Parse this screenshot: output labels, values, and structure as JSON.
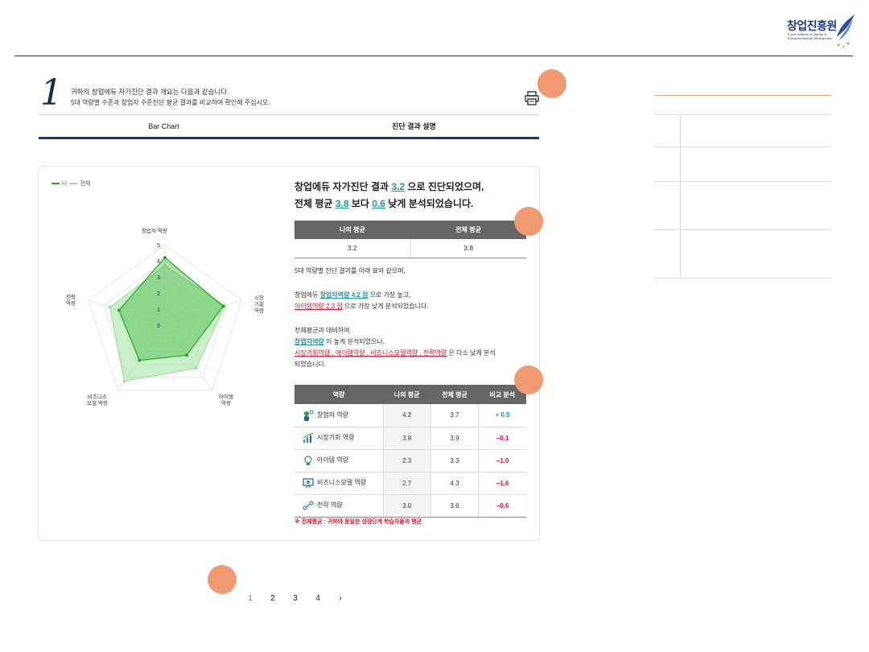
{
  "header": {
    "logo_text": "창업진흥원",
    "logo_sub": "Korea Institute of Startup & Entrepreneurship Development"
  },
  "intro": {
    "step_number": "1",
    "line1": "귀하의 창업에듀 자가진단 결과 개요는 다음과 같습니다.",
    "line2": "5대 역량별 수준과 창업자 수준진단 평균 결과를 비교하여 확인해 주십시오."
  },
  "tabs": [
    {
      "label": "Bar Chart"
    },
    {
      "label": "진단 결과 설명"
    }
  ],
  "chart_data": {
    "type": "radar",
    "legend": [
      {
        "name": "나",
        "color": "#22aa22"
      },
      {
        "name": "전체",
        "color": "#9de39a"
      }
    ],
    "axes": [
      "창업자 역량",
      "시장 기회 역량",
      "아이템 역량",
      "비즈니스 모델 역량",
      "전략 역량"
    ],
    "range": [
      0,
      5
    ],
    "ticks": [
      "0",
      "1",
      "2",
      "3",
      "4",
      "5"
    ],
    "series": [
      {
        "name": "나",
        "values": [
          4.2,
          3.8,
          2.3,
          2.7,
          3.0
        ]
      },
      {
        "name": "전체",
        "values": [
          3.7,
          3.9,
          3.3,
          4.3,
          3.6
        ]
      }
    ]
  },
  "axis_labels": {
    "a0": "창업자 역량",
    "a1a": "시장",
    "a1b": "기회",
    "a1c": "역량",
    "a2a": "아이템",
    "a2b": "역량",
    "a3a": "비즈니스",
    "a3b": "모델 역량",
    "a4a": "전략",
    "a4b": "역량"
  },
  "summary": {
    "l1_pre": "창업에듀 자가진단 결과 ",
    "l1_score": "3.2",
    "l1_post": " 으로 진단되었으며,",
    "l2_pre": "전체 평균 ",
    "l2_avg": "3.8",
    "l2_mid": " 보다 ",
    "l2_diff": "0.6",
    "l2_post": " 낮게 분석되었습니다."
  },
  "avg_table": {
    "headers": [
      "나의 평균",
      "전체 평균"
    ],
    "values": [
      "3.2",
      "3.8"
    ]
  },
  "desc": {
    "p1": "5대 역량별 진단 결과를 아래 표와 같으며,",
    "p2_pre": "창업에듀 ",
    "p2_hl": "창업자역량 4.2 점",
    "p2_post": " 으로 가장 높고,",
    "p3_hl": "아이템역량 2.3 점",
    "p3_post": " 으로 가장 낮게 분석되었습니다.",
    "p4": "전체평균과 대비하여",
    "p5_hl": "창업자역량",
    "p5_post": " 이 높게 분석되었으나,",
    "p6_hl": "시장기회역량 , 아이템역량 , 비즈니스모델역량 , 전략역량",
    "p6_post": " 은 다소 낮게 분석",
    "p7": "되었습니다."
  },
  "compare_table": {
    "headers": [
      "역량",
      "나의 평균",
      "전체 평균",
      "비교 분석"
    ],
    "rows": [
      {
        "name": "창업자 역량",
        "mine": "4.2",
        "all": "3.7",
        "diff": "+ 0.5",
        "icon": "person-icon"
      },
      {
        "name": "시장기회 역량",
        "mine": "3.8",
        "all": "3.9",
        "diff": "−0.1",
        "icon": "chart-icon"
      },
      {
        "name": "아이템 역량",
        "mine": "2.3",
        "all": "3.3",
        "diff": "−1.0",
        "icon": "bulb-icon"
      },
      {
        "name": "비즈니스모델 역량",
        "mine": "2.7",
        "all": "4.3",
        "diff": "−1.6",
        "icon": "presentation-icon"
      },
      {
        "name": "전략 역량",
        "mine": "3.0",
        "all": "3.6",
        "diff": "−0.6",
        "icon": "strategy-icon"
      }
    ]
  },
  "footnote": "※ 전체평균 : 귀하와 동일한 성장단계 학습자들의 평균",
  "pagination": {
    "pages": [
      "1",
      "2",
      "3",
      "4"
    ],
    "next": "›",
    "current": "1"
  },
  "colors": {
    "accent": "#1b9aa0",
    "negative": "#e0102e",
    "navy": "#1f3b5a",
    "marker": "#f09a72"
  }
}
